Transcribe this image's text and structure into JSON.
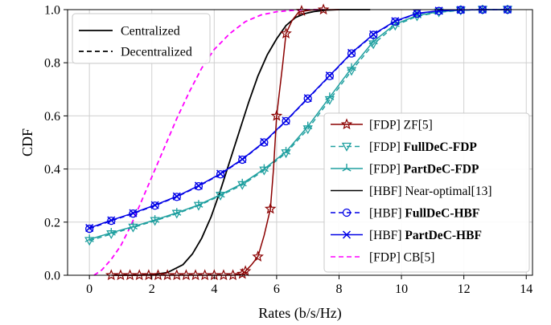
{
  "chart_data": {
    "type": "line",
    "title": "",
    "xlabel": "Rates (b/s/Hz)",
    "ylabel": "CDF",
    "xlim": [
      -0.7,
      14.2
    ],
    "ylim": [
      0,
      1.0
    ],
    "xticks": [
      0,
      2,
      4,
      6,
      8,
      10,
      12,
      14
    ],
    "xtick_labels": [
      "0",
      "2",
      "4",
      "6",
      "8",
      "10",
      "12",
      "14"
    ],
    "yticks": [
      0,
      0.2,
      0.4,
      0.6,
      0.8,
      1.0
    ],
    "ytick_labels": [
      "0.0",
      "0.2",
      "0.4",
      "0.6",
      "0.8",
      "1.0"
    ],
    "grid": true,
    "style_legend": {
      "placement": "top-left",
      "entries": [
        {
          "label": "Centralized",
          "dash": "solid"
        },
        {
          "label": "Decentralized",
          "dash": "dashed"
        }
      ]
    },
    "legend": {
      "placement": "lower-right"
    },
    "series": [
      {
        "name": "[FDP] ZF[5]",
        "prefix": "[FDP] ",
        "label": "ZF[5]",
        "bold": false,
        "color": "#8b0000",
        "dash": "solid",
        "marker": "star",
        "x": [
          0.7,
          1.0,
          1.3,
          1.6,
          1.9,
          2.2,
          2.5,
          2.8,
          3.1,
          3.4,
          3.7,
          4.0,
          4.3,
          4.6,
          4.9,
          5.0,
          5.2,
          5.4,
          5.6,
          5.7,
          5.8,
          5.9,
          6.0,
          6.1,
          6.2,
          6.3,
          6.5,
          6.7,
          6.9,
          7.2,
          7.5,
          8.0
        ],
        "y": [
          0,
          0,
          0,
          0,
          0,
          0,
          0,
          0,
          0,
          0,
          0,
          0,
          0,
          0,
          0.005,
          0.015,
          0.04,
          0.07,
          0.15,
          0.2,
          0.25,
          0.4,
          0.6,
          0.7,
          0.8,
          0.91,
          0.96,
          0.99,
          0.995,
          1.0,
          1.0,
          1.0
        ],
        "mx": [
          0.7,
          1.0,
          1.3,
          1.6,
          1.9,
          2.2,
          2.5,
          2.8,
          3.1,
          3.4,
          3.7,
          4.0,
          4.3,
          4.6,
          4.9,
          5.0,
          5.4,
          5.8,
          6.0,
          6.3,
          6.8,
          7.5
        ],
        "my": [
          0,
          0,
          0,
          0,
          0,
          0,
          0,
          0,
          0,
          0,
          0,
          0,
          0,
          0,
          0.005,
          0.015,
          0.07,
          0.25,
          0.6,
          0.91,
          0.995,
          1.0
        ]
      },
      {
        "name": "[FDP] FullDeC-FDP",
        "prefix": "[FDP] ",
        "label": "FullDeC-FDP",
        "bold": true,
        "color": "#20a0a0",
        "dash": "dashed",
        "marker": "tri-down",
        "x": [
          0,
          0.7,
          1.4,
          2.1,
          2.8,
          3.5,
          4.2,
          4.9,
          5.6,
          6.3,
          7.0,
          7.7,
          8.4,
          9.1,
          9.8,
          10.5,
          11.2,
          11.9,
          12.6,
          13.4
        ],
        "y": [
          0.13,
          0.155,
          0.18,
          0.205,
          0.232,
          0.262,
          0.3,
          0.34,
          0.395,
          0.46,
          0.55,
          0.66,
          0.77,
          0.87,
          0.94,
          0.975,
          0.99,
          0.997,
          1.0,
          1.0
        ]
      },
      {
        "name": "[FDP] PartDeC-FDP",
        "prefix": "[FDP] ",
        "label": "PartDeC-FDP",
        "bold": true,
        "color": "#20a0a0",
        "dash": "solid",
        "marker": "tri-up",
        "x": [
          0,
          0.7,
          1.4,
          2.1,
          2.8,
          3.5,
          4.2,
          4.9,
          5.6,
          6.3,
          7.0,
          7.7,
          8.4,
          9.1,
          9.8,
          10.5,
          11.2,
          11.9,
          12.6,
          13.4
        ],
        "y": [
          0.135,
          0.16,
          0.183,
          0.208,
          0.235,
          0.265,
          0.303,
          0.345,
          0.4,
          0.465,
          0.56,
          0.67,
          0.78,
          0.88,
          0.945,
          0.978,
          0.992,
          0.998,
          1.0,
          1.0
        ]
      },
      {
        "name": "[HBF] Near-optimal[13]",
        "prefix": "[HBF] ",
        "label": "Near-optimal[13]",
        "bold": false,
        "color": "#000000",
        "dash": "solid",
        "marker": "none",
        "x": [
          0.8,
          1.5,
          2.0,
          2.5,
          3.0,
          3.3,
          3.6,
          3.9,
          4.2,
          4.5,
          4.8,
          5.1,
          5.4,
          5.7,
          6.0,
          6.3,
          6.6,
          6.9,
          7.2,
          7.6,
          8.0,
          9.0
        ],
        "y": [
          0,
          0,
          0.002,
          0.01,
          0.04,
          0.08,
          0.14,
          0.22,
          0.32,
          0.43,
          0.54,
          0.65,
          0.75,
          0.83,
          0.89,
          0.94,
          0.97,
          0.985,
          0.993,
          0.998,
          1.0,
          1.0
        ]
      },
      {
        "name": "[HBF] FullDeC-HBF",
        "prefix": "[HBF] ",
        "label": "FullDeC-HBF",
        "bold": true,
        "color": "#0000e6",
        "dash": "dashed",
        "marker": "circle",
        "x": [
          0,
          0.7,
          1.4,
          2.1,
          2.8,
          3.5,
          4.2,
          4.9,
          5.6,
          6.3,
          7.0,
          7.7,
          8.4,
          9.1,
          9.8,
          10.5,
          11.2,
          11.9,
          12.6,
          13.4
        ],
        "y": [
          0.175,
          0.205,
          0.232,
          0.262,
          0.295,
          0.335,
          0.38,
          0.435,
          0.5,
          0.58,
          0.665,
          0.75,
          0.835,
          0.905,
          0.955,
          0.985,
          0.995,
          0.999,
          1.0,
          1.0
        ]
      },
      {
        "name": "[HBF] PartDeC-HBF",
        "prefix": "[HBF] ",
        "label": "PartDeC-HBF",
        "bold": true,
        "color": "#0000e6",
        "dash": "solid",
        "marker": "x",
        "x": [
          0,
          0.7,
          1.4,
          2.1,
          2.8,
          3.5,
          4.2,
          4.9,
          5.6,
          6.3,
          7.0,
          7.7,
          8.4,
          9.1,
          9.8,
          10.5,
          11.2,
          11.9,
          12.6,
          13.4
        ],
        "y": [
          0.178,
          0.207,
          0.234,
          0.264,
          0.297,
          0.337,
          0.382,
          0.437,
          0.502,
          0.582,
          0.667,
          0.752,
          0.837,
          0.907,
          0.957,
          0.986,
          0.996,
          0.999,
          1.0,
          1.0
        ]
      },
      {
        "name": "[FDP] CB[5]",
        "prefix": "[FDP] ",
        "label": "CB[5]",
        "bold": false,
        "color": "#ff00ff",
        "dash": "dashed",
        "marker": "none",
        "x": [
          0.15,
          0.4,
          0.7,
          1.0,
          1.3,
          1.6,
          2.0,
          2.4,
          2.8,
          3.2,
          3.6,
          4.0,
          4.5,
          5.0,
          5.5,
          6.0,
          6.5,
          7.0,
          7.5
        ],
        "y": [
          0,
          0.02,
          0.06,
          0.11,
          0.18,
          0.26,
          0.37,
          0.48,
          0.59,
          0.69,
          0.78,
          0.85,
          0.91,
          0.955,
          0.98,
          0.992,
          0.997,
          1.0,
          1.0
        ]
      }
    ]
  }
}
